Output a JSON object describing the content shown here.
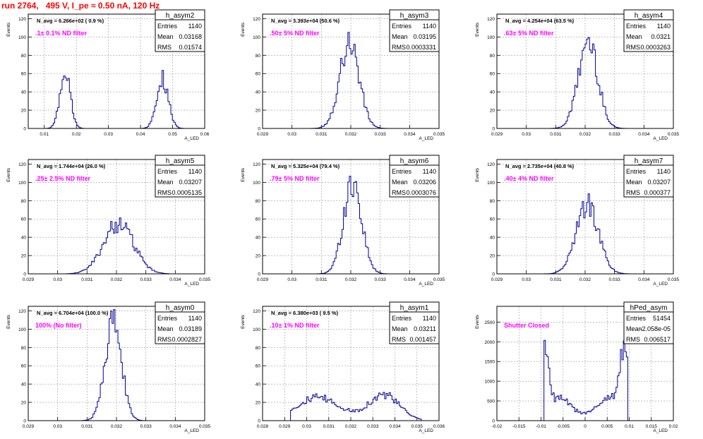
{
  "run_title": "run 2764,   495 V, I_pe ≈ 0.50 nA, 120 Hz",
  "colors": {
    "histogram": "#000099",
    "filter_label": "#ff00ff",
    "title": "#ff0000",
    "grid": "#999999"
  },
  "chart_data": [
    {
      "type": "histogram",
      "name": "h_asym2",
      "navg": "N_avg = 6.266e+02 ( 0.9 %)",
      "filter_label": ".1± 0.1% ND filter",
      "stats": [
        [
          "Entries",
          "1140"
        ],
        [
          "Mean",
          "0.03168"
        ],
        [
          "RMS",
          "0.01574"
        ]
      ],
      "xlim": [
        0.005,
        0.06
      ],
      "ylim": [
        0,
        125
      ],
      "xticks": [
        0.01,
        0.02,
        0.03,
        0.04,
        0.05,
        0.06
      ],
      "xtick_labels": [
        "0.01",
        "0.02",
        "0.03",
        "0.04",
        "0.05",
        "0.06"
      ],
      "yticks": [
        0,
        20,
        40,
        60,
        80,
        100,
        120
      ],
      "ytick_labels": [
        "0",
        "20",
        "40",
        "60",
        "80",
        "100",
        "120"
      ],
      "xlabel": "A_LED",
      "ylabel": "Events",
      "peaks": [
        {
          "mean": 0.0165,
          "sigma": 0.0016,
          "height": 60
        },
        {
          "mean": 0.0468,
          "sigma": 0.0018,
          "height": 55
        }
      ],
      "xmin": 0.01,
      "xmax": 0.055
    },
    {
      "type": "histogram",
      "name": "h_asym3",
      "navg": "N_avg = 3.393e+04 (50.6 %)",
      "filter_label": ".50± 5% ND filter",
      "stats": [
        [
          "Entries",
          "1140"
        ],
        [
          "Mean",
          "0.03195"
        ],
        [
          "RMS",
          "0.0003331"
        ]
      ],
      "xlim": [
        0.029,
        0.035
      ],
      "ylim": [
        0,
        125
      ],
      "xticks": [
        0.029,
        0.03,
        0.031,
        0.032,
        0.033,
        0.034,
        0.035
      ],
      "xtick_labels": [
        "0.029",
        "0.03",
        "0.031",
        "0.032",
        "0.033",
        "0.034",
        "0.035"
      ],
      "yticks": [
        0,
        20,
        40,
        60,
        80,
        100,
        120
      ],
      "ytick_labels": [
        "0",
        "20",
        "40",
        "60",
        "80",
        "100",
        "120"
      ],
      "xlabel": "A_LED",
      "ylabel": "Events",
      "peaks": [
        {
          "mean": 0.03195,
          "sigma": 0.00033,
          "height": 95
        }
      ],
      "xmin": 0.0305,
      "xmax": 0.0335
    },
    {
      "type": "histogram",
      "name": "h_asym4",
      "navg": "N_avg = 4.254e+04 (63.5 %)",
      "filter_label": ".63± 5% ND filter",
      "stats": [
        [
          "Entries",
          "1140"
        ],
        [
          "Mean",
          "0.0321"
        ],
        [
          "RMS",
          "0.0003263"
        ]
      ],
      "xlim": [
        0.029,
        0.035
      ],
      "ylim": [
        0,
        125
      ],
      "xticks": [
        0.029,
        0.03,
        0.031,
        0.032,
        0.033,
        0.034,
        0.035
      ],
      "xtick_labels": [
        "0.029",
        "0.03",
        "0.031",
        "0.032",
        "0.033",
        "0.034",
        "0.035"
      ],
      "yticks": [
        0,
        20,
        40,
        60,
        80,
        100,
        120
      ],
      "ytick_labels": [
        "0",
        "20",
        "40",
        "60",
        "80",
        "100",
        "120"
      ],
      "xlabel": "A_LED",
      "ylabel": "Events",
      "peaks": [
        {
          "mean": 0.0321,
          "sigma": 0.00033,
          "height": 95
        }
      ],
      "xmin": 0.0305,
      "xmax": 0.0335
    },
    {
      "type": "histogram",
      "name": "h_asym5",
      "navg": "N_avg = 1.744e+04 (26.0 %)",
      "filter_label": ".25± 2.5% ND filter",
      "stats": [
        [
          "Entries",
          "1140"
        ],
        [
          "Mean",
          "0.03207"
        ],
        [
          "RMS",
          "0.0005135"
        ]
      ],
      "xlim": [
        0.029,
        0.035
      ],
      "ylim": [
        0,
        125
      ],
      "xticks": [
        0.029,
        0.03,
        0.031,
        0.032,
        0.033,
        0.034,
        0.035
      ],
      "xtick_labels": [
        "0.029",
        "0.03",
        "0.031",
        "0.032",
        "0.033",
        "0.034",
        "0.035"
      ],
      "yticks": [
        0,
        20,
        40,
        60,
        80,
        100,
        120
      ],
      "ytick_labels": [
        "0",
        "20",
        "40",
        "60",
        "80",
        "100",
        "120"
      ],
      "xlabel": "A_LED",
      "ylabel": "Events",
      "peaks": [
        {
          "mean": 0.03207,
          "sigma": 0.00051,
          "height": 55
        }
      ],
      "xmin": 0.0303,
      "xmax": 0.0338
    },
    {
      "type": "histogram",
      "name": "h_asym6",
      "navg": "N_avg = 5.325e+04 (79.4 %)",
      "filter_label": ".79± 5% ND filter",
      "stats": [
        [
          "Entries",
          "1140"
        ],
        [
          "Mean",
          "0.03206"
        ],
        [
          "RMS",
          "0.0003076"
        ]
      ],
      "xlim": [
        0.029,
        0.035
      ],
      "ylim": [
        0,
        125
      ],
      "xticks": [
        0.029,
        0.03,
        0.031,
        0.032,
        0.033,
        0.034,
        0.035
      ],
      "xtick_labels": [
        "0.029",
        "0.03",
        "0.031",
        "0.032",
        "0.033",
        "0.034",
        "0.035"
      ],
      "yticks": [
        0,
        20,
        40,
        60,
        80,
        100,
        120
      ],
      "ytick_labels": [
        "0",
        "20",
        "40",
        "60",
        "80",
        "100",
        "120"
      ],
      "xlabel": "A_LED",
      "ylabel": "Events",
      "peaks": [
        {
          "mean": 0.03206,
          "sigma": 0.00031,
          "height": 100
        }
      ],
      "xmin": 0.0305,
      "xmax": 0.0335
    },
    {
      "type": "histogram",
      "name": "h_asym7",
      "navg": "N_avg = 2.735e+04 (40.8 %)",
      "filter_label": ".40± 4% ND filter",
      "stats": [
        [
          "Entries",
          "1140"
        ],
        [
          "Mean",
          "0.03207"
        ],
        [
          "RMS",
          "0.000377"
        ]
      ],
      "xlim": [
        0.029,
        0.035
      ],
      "ylim": [
        0,
        125
      ],
      "xticks": [
        0.029,
        0.03,
        0.031,
        0.032,
        0.033,
        0.034,
        0.035
      ],
      "xtick_labels": [
        "0.029",
        "0.03",
        "0.031",
        "0.032",
        "0.033",
        "0.034",
        "0.035"
      ],
      "yticks": [
        0,
        20,
        40,
        60,
        80,
        100,
        120
      ],
      "ytick_labels": [
        "0",
        "20",
        "40",
        "60",
        "80",
        "100",
        "120"
      ],
      "xlabel": "A_LED",
      "ylabel": "Events",
      "peaks": [
        {
          "mean": 0.03207,
          "sigma": 0.00038,
          "height": 76
        }
      ],
      "xmin": 0.0305,
      "xmax": 0.0335
    },
    {
      "type": "histogram",
      "name": "h_asym0",
      "navg": "N_avg = 6.704e+04 (100.0 %)",
      "filter_label": "100% (No filter)",
      "stats": [
        [
          "Entries",
          "1140"
        ],
        [
          "Mean",
          "0.03189"
        ],
        [
          "RMS",
          "0.0002827"
        ]
      ],
      "xlim": [
        0.029,
        0.035
      ],
      "ylim": [
        0,
        125
      ],
      "xticks": [
        0.029,
        0.03,
        0.031,
        0.032,
        0.033,
        0.034,
        0.035
      ],
      "xtick_labels": [
        "0.029",
        "0.03",
        "0.031",
        "0.032",
        "0.033",
        "0.034",
        "0.035"
      ],
      "yticks": [
        0,
        20,
        40,
        60,
        80,
        100,
        120
      ],
      "ytick_labels": [
        "0",
        "20",
        "40",
        "60",
        "80",
        "100",
        "120"
      ],
      "xlabel": "A_LED",
      "ylabel": "Events",
      "peaks": [
        {
          "mean": 0.03189,
          "sigma": 0.00028,
          "height": 108
        }
      ],
      "xmin": 0.0305,
      "xmax": 0.0335
    },
    {
      "type": "histogram",
      "name": "h_asym1",
      "navg": "N_avg = 6.380e+03 ( 9.5 %)",
      "filter_label": ".10± 1% ND filter",
      "stats": [
        [
          "Entries",
          "1140"
        ],
        [
          "Mean",
          "0.03211"
        ],
        [
          "RMS",
          "0.001457"
        ]
      ],
      "xlim": [
        0.028,
        0.036
      ],
      "ylim": [
        0,
        125
      ],
      "xticks": [
        0.028,
        0.029,
        0.03,
        0.031,
        0.032,
        0.033,
        0.034,
        0.035,
        0.036
      ],
      "xtick_labels": [
        "0.028",
        "0.029",
        "0.03",
        "0.031",
        "0.032",
        "0.033",
        "0.034",
        "0.035",
        "0.036"
      ],
      "yticks": [
        0,
        20,
        40,
        60,
        80,
        100,
        120
      ],
      "ytick_labels": [
        "0",
        "20",
        "40",
        "60",
        "80",
        "100",
        "120"
      ],
      "xlabel": "A_LED",
      "ylabel": "Events",
      "peaks": [
        {
          "mean": 0.0305,
          "sigma": 0.001,
          "height": 25
        },
        {
          "mean": 0.0335,
          "sigma": 0.0007,
          "height": 28
        }
      ],
      "xmin": 0.0293,
      "xmax": 0.0352
    },
    {
      "type": "histogram",
      "name": "hPed_asym",
      "navg": "",
      "filter_label": "Shutter Closed",
      "stats": [
        [
          "Entries",
          "51454"
        ],
        [
          "Mean",
          "-2.058e-05"
        ],
        [
          "RMS",
          "0.006517"
        ]
      ],
      "xlim": [
        -0.02,
        0.02
      ],
      "ylim": [
        0,
        2900
      ],
      "xticks": [
        -0.02,
        -0.015,
        -0.01,
        -0.005,
        0,
        0.005,
        0.01,
        0.015,
        0.02
      ],
      "xtick_labels": [
        "-0.02",
        "-0.015",
        "-0.01",
        "-0.005",
        "0",
        "0.005",
        "0.01",
        "0.015",
        "0.02"
      ],
      "yticks": [
        0,
        500,
        1000,
        1500,
        2000,
        2500
      ],
      "ytick_labels": [
        "0",
        "500",
        "1000",
        "1500",
        "2000",
        "2500"
      ],
      "xlabel": "A_LED",
      "ylabel": "Events",
      "peaks": [
        {
          "mean": -0.0092,
          "sigma": 0.0009,
          "height": 1500
        },
        {
          "mean": 0.0088,
          "sigma": 0.0009,
          "height": 1600
        },
        {
          "mean": -0.0058,
          "sigma": 0.0022,
          "height": 400
        },
        {
          "mean": 0.0055,
          "sigma": 0.0022,
          "height": 450
        }
      ],
      "base": 1100,
      "xmin": -0.0095,
      "xmax": 0.0095
    }
  ]
}
